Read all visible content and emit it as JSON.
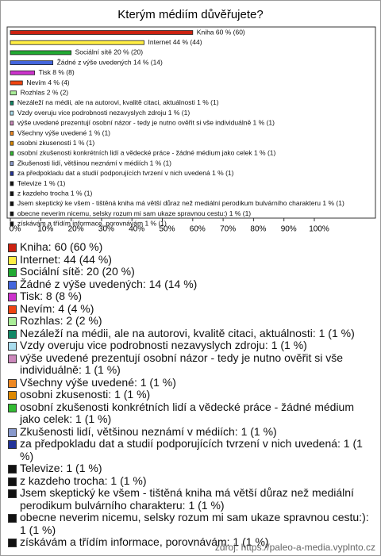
{
  "chart_data": {
    "type": "bar",
    "orientation": "horizontal",
    "title": "Kterým médiím důvěřujete?",
    "categories": [
      "Kniha",
      "Internet",
      "Sociální sítě",
      "Žádné z výše uvedených",
      "Tisk",
      "Nevím",
      "Rozhlas",
      "Nezáleží na médii, ale na autorovi, kvalitě citaci, aktuálnosti",
      "Vzdy overuju vice podrobnosti nezavyslych zdroju",
      "výše uvedené prezentují osobní názor - tedy je nutno ověřit si vše individuálně",
      "Všechny výše uvedené",
      "osobni zkusenosti",
      "osobní zkušenosti konkrétních lidí a vědecké práce - žádné médium jako celek",
      "Zkušenosti lidí, většinou neznámí v médiích",
      "za předpokladu dat a studií podporujících tvrzení v nich uvedená",
      "Televize",
      "z kazdeho trocha",
      "Jsem skeptický ke všem - tištěná kniha má větší důraz než mediální perodikum bulvárního charakteru",
      "obecne neverim nicemu, selsky rozum mi sam ukaze spravnou cestu:)",
      "získávám a třídím informace, porovnávám"
    ],
    "values": [
      60,
      44,
      20,
      14,
      8,
      4,
      2,
      1,
      1,
      1,
      1,
      1,
      1,
      1,
      1,
      1,
      1,
      1,
      1,
      1
    ],
    "value_labels": [
      "Kniha 60 % (60)",
      "Internet 44 % (44)",
      "Sociální sítě 20 % (20)",
      "Žádné z výše uvedených 14 % (14)",
      "Tisk 8 % (8)",
      "Nevím 4 % (4)",
      "Rozhlas 2 % (2)",
      "Nezáleží na médii, ale na autorovi, kvalitě citaci, aktuálnosti 1 % (1)",
      "Vzdy overuju vice podrobnosti nezavyslych zdroju 1 % (1)",
      "výše uvedené prezentují osobní názor - tedy je nutno ověřit si vše individuálně 1 % (1)",
      "Všechny výše uvedené 1 % (1)",
      "osobni zkusenosti 1 % (1)",
      "osobní zkušenosti konkrétních lidí a vědecké práce - žádné médium jako celek 1 % (1)",
      "Zkušenosti lidí, většinou neznámí v médiích 1 % (1)",
      "za předpokladu dat a studií podporujících tvrzení v nich uvedená 1 % (1)",
      "Televize 1 % (1)",
      "z kazdeho trocha 1 % (1)",
      "Jsem skeptický ke všem - tištěná kniha má větší důraz než mediální perodikum bulvárního charakteru 1 % (1)",
      "obecne neverim nicemu, selsky rozum mi sam ukaze spravnou cestu:) 1 % (1)",
      "získávám a třídím informace, porovnávám 1 % (1)"
    ],
    "legend": [
      "Kniha: 60 (60 %)",
      "Internet: 44 (44 %)",
      "Sociální sítě: 20 (20 %)",
      "Žádné z výše uvedených: 14 (14 %)",
      "Tisk: 8 (8 %)",
      "Nevím: 4 (4 %)",
      "Rozhlas: 2 (2 %)",
      "Nezáleží na médii, ale na autorovi, kvalitě citaci, aktuálnosti: 1 (1 %)",
      "Vzdy overuju vice podrobnosti nezavyslych zdroju: 1 (1 %)",
      "výše uvedené prezentují osobní názor - tedy je nutno ověřit si vše individuálně: 1 (1 %)",
      "Všechny výše uvedené: 1 (1 %)",
      "osobni zkusenosti: 1 (1 %)",
      "osobní zkušenosti konkrétních lidí a vědecké práce - žádné médium jako celek: 1 (1 %)",
      "Zkušenosti lidí, většinou neznámí v médiích: 1 (1 %)",
      "za předpokladu dat a studií podporujících tvrzení v nich uvedená: 1 (1 %)",
      "Televize: 1 (1 %)",
      "z kazdeho trocha: 1 (1 %)",
      "Jsem skeptický ke všem - tištěná kniha má větší důraz než mediální perodikum bulvárního charakteru: 1 (1 %)",
      "obecne neverim nicemu, selsky rozum mi sam ukaze spravnou cestu:): 1 (1 %)",
      "získávám a třídím informace, porovnávám: 1 (1 %)"
    ],
    "colors": [
      "#cc2211",
      "#ffee44",
      "#22aa33",
      "#4466dd",
      "#cc33cc",
      "#ee4411",
      "#aaee99",
      "#118866",
      "#aaddee",
      "#cc88bb",
      "#ee8822",
      "#dd8800",
      "#33bb33",
      "#8899cc",
      "#223399",
      "#111111",
      "#111111",
      "#111111",
      "#111111",
      "#111111"
    ],
    "xlim": [
      0,
      100
    ],
    "xticks": [
      {
        "value": 0,
        "label": "0%"
      },
      {
        "value": 10,
        "label": "10%"
      },
      {
        "value": 20,
        "label": "20%"
      },
      {
        "value": 30,
        "label": "30%"
      },
      {
        "value": 40,
        "label": "40%"
      },
      {
        "value": 50,
        "label": "50%"
      },
      {
        "value": 60,
        "label": "60%"
      },
      {
        "value": 70,
        "label": "70%"
      },
      {
        "value": 80,
        "label": "80%"
      },
      {
        "value": 90,
        "label": "90%"
      },
      {
        "value": 100,
        "label": "100%"
      }
    ],
    "source": "zdroj: https://paleo-a-media.vyplnto.cz"
  }
}
